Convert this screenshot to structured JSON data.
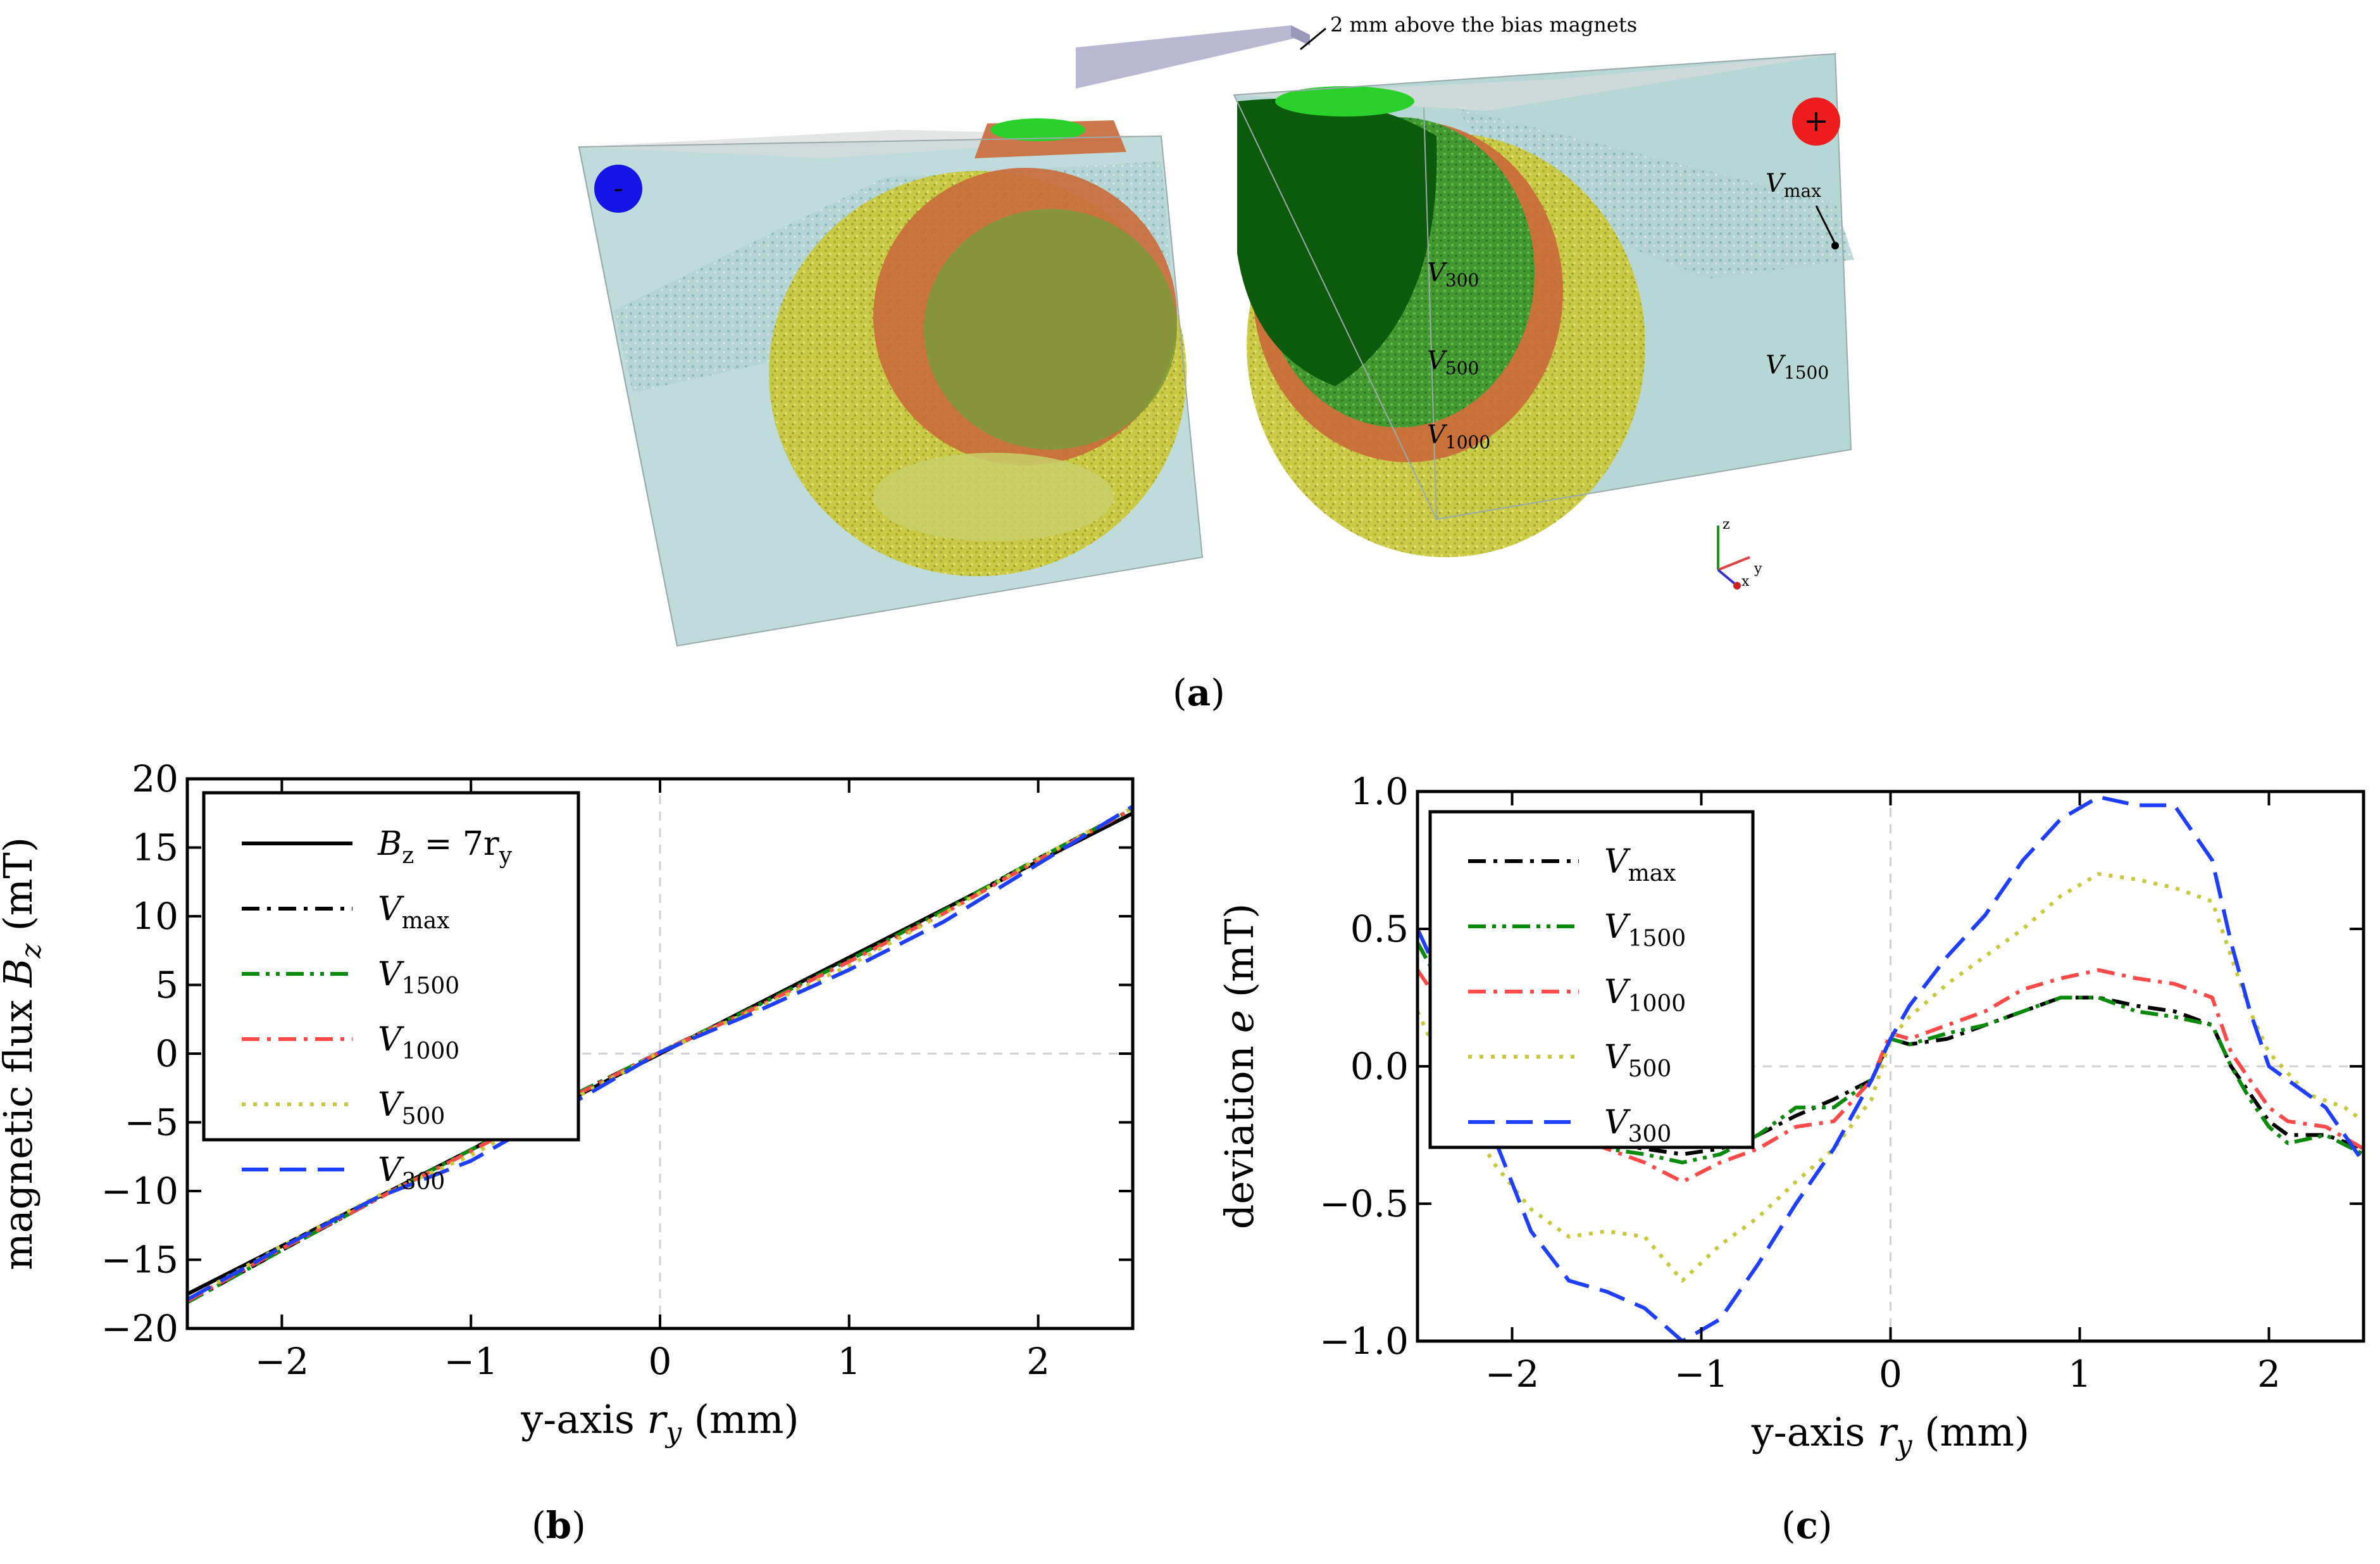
{
  "panel_labels": {
    "a": "a",
    "b": "b",
    "c": "c"
  },
  "figure_a": {
    "probe_annotation": "2 mm above the bias magnets",
    "negative_symbol": "-",
    "positive_symbol": "+",
    "volume_labels": [
      {
        "base": "V",
        "sub": "max"
      },
      {
        "base": "V",
        "sub": "300"
      },
      {
        "base": "V",
        "sub": "500"
      },
      {
        "base": "V",
        "sub": "1500"
      },
      {
        "base": "V",
        "sub": "1000"
      }
    ],
    "axes_triad": {
      "z": "z",
      "y": "y",
      "x": "x"
    },
    "colors": {
      "negative": "#1414e6",
      "positive": "#ee1c1c",
      "box": "#b8d8d8",
      "outer_shell": "#c8c83c",
      "mid_shell": "#c8603c",
      "inner_shell": "#1f8f1f"
    }
  },
  "chart_data": [
    {
      "type": "line",
      "xlabel": "y-axis r_y (mm)",
      "ylabel": "magnetic flux B_z (mT)",
      "xlim": [
        -2.5,
        2.5
      ],
      "ylim": [
        -20,
        20
      ],
      "xticks": [
        -2,
        -1,
        0,
        1,
        2
      ],
      "yticks": [
        -20,
        -15,
        -10,
        -5,
        0,
        5,
        10,
        15,
        20
      ],
      "xtick_labels": [
        "−2",
        "−1",
        "0",
        "1",
        "2"
      ],
      "ytick_labels": [
        "−20",
        "−15",
        "−10",
        "−5",
        "0",
        "5",
        "10",
        "15",
        "20"
      ],
      "legend_location": "upper-left",
      "series": [
        {
          "name": "B_z = 7r_y",
          "label": "B",
          "label_sub": "z",
          "label_suffix": " = 7r",
          "label_suffix_sub": "y",
          "color": "#000000",
          "dash": "solid",
          "x": [
            -2.5,
            2.5
          ],
          "y": [
            -17.5,
            17.5
          ]
        },
        {
          "name": "V_max",
          "label": "V",
          "label_sub": "max",
          "color": "#000000",
          "dash": "dashdot",
          "x": [
            -2.5,
            -2,
            -1.5,
            -1,
            -0.5,
            0,
            0.5,
            1,
            1.5,
            2,
            2.5
          ],
          "y": [
            -18.1,
            -14.3,
            -10.6,
            -7.0,
            -3.3,
            0.1,
            3.4,
            6.8,
            10.4,
            14.2,
            17.8
          ]
        },
        {
          "name": "V_1500",
          "label": "V",
          "label_sub": "1500",
          "color": "#0a8a0a",
          "dash": "dashdotdot",
          "x": [
            -2.5,
            -2,
            -1.5,
            -1,
            -0.5,
            0,
            0.5,
            1,
            1.5,
            2,
            2.5
          ],
          "y": [
            -18.1,
            -14.3,
            -10.6,
            -7.0,
            -3.3,
            0.1,
            3.4,
            6.8,
            10.4,
            14.2,
            17.8
          ]
        },
        {
          "name": "V_1000",
          "label": "V",
          "label_sub": "1000",
          "color": "#ff4a4a",
          "dash": "dashdot",
          "x": [
            -2.5,
            -2,
            -1.5,
            -1,
            -0.5,
            0,
            0.5,
            1,
            1.5,
            2,
            2.5
          ],
          "y": [
            -18.0,
            -14.2,
            -10.6,
            -7.1,
            -3.4,
            0.1,
            3.3,
            6.7,
            10.2,
            14.1,
            17.8
          ]
        },
        {
          "name": "V_500",
          "label": "V",
          "label_sub": "500",
          "color": "#c8c83c",
          "dash": "dotted",
          "x": [
            -2.5,
            -2,
            -1.5,
            -1,
            -0.5,
            0,
            0.5,
            1,
            1.5,
            2,
            2.5
          ],
          "y": [
            -17.9,
            -14.0,
            -10.4,
            -7.4,
            -3.6,
            0.1,
            3.2,
            6.4,
            10.2,
            14.2,
            17.9
          ]
        },
        {
          "name": "V_300",
          "label": "V",
          "label_sub": "300",
          "color": "#1f3fff",
          "dash": "dashed",
          "x": [
            -2.5,
            -2,
            -1.5,
            -1,
            -0.5,
            0,
            0.5,
            1,
            1.5,
            2,
            2.5
          ],
          "y": [
            -17.9,
            -14.1,
            -10.5,
            -7.8,
            -3.9,
            0.1,
            3.0,
            6.1,
            9.6,
            13.8,
            18.0
          ]
        }
      ]
    },
    {
      "type": "line",
      "xlabel": "y-axis r_y (mm)",
      "ylabel": "deviation e (mT)",
      "xlim": [
        -2.5,
        2.5
      ],
      "ylim": [
        -1.0,
        1.0
      ],
      "xticks": [
        -2,
        -1,
        0,
        1,
        2
      ],
      "yticks": [
        -1.0,
        -0.5,
        0.0,
        0.5,
        1.0
      ],
      "xtick_labels": [
        "−2",
        "−1",
        "0",
        "1",
        "2"
      ],
      "ytick_labels": [
        "−1.0",
        "−0.5",
        "0.0",
        "0.5",
        "1.0"
      ],
      "legend_location": "upper-left",
      "series": [
        {
          "name": "V_max",
          "label": "V",
          "label_sub": "max",
          "color": "#000000",
          "dash": "dashdot",
          "x": [
            -2.5,
            -2.3,
            -2.1,
            -1.9,
            -1.7,
            -1.5,
            -1.3,
            -1.1,
            -0.9,
            -0.7,
            -0.5,
            -0.3,
            -0.1,
            0.0,
            0.1,
            0.3,
            0.5,
            0.7,
            0.9,
            1.1,
            1.3,
            1.5,
            1.7,
            1.8,
            1.9,
            2.0,
            2.1,
            2.3,
            2.5
          ],
          "y": [
            0.45,
            0.2,
            -0.05,
            -0.15,
            -0.2,
            -0.28,
            -0.3,
            -0.32,
            -0.3,
            -0.25,
            -0.18,
            -0.12,
            -0.05,
            0.1,
            0.08,
            0.1,
            0.15,
            0.2,
            0.25,
            0.25,
            0.22,
            0.2,
            0.15,
            0.0,
            -0.1,
            -0.2,
            -0.25,
            -0.25,
            -0.3
          ]
        },
        {
          "name": "V_1500",
          "label": "V",
          "label_sub": "1500",
          "color": "#0a8a0a",
          "dash": "dashdotdot",
          "x": [
            -2.5,
            -2.3,
            -2.1,
            -1.9,
            -1.7,
            -1.5,
            -1.3,
            -1.1,
            -0.9,
            -0.7,
            -0.5,
            -0.3,
            -0.1,
            0.0,
            0.1,
            0.3,
            0.5,
            0.7,
            0.9,
            1.1,
            1.3,
            1.5,
            1.7,
            1.8,
            1.9,
            2.0,
            2.1,
            2.3,
            2.5
          ],
          "y": [
            0.45,
            0.2,
            -0.05,
            -0.15,
            -0.2,
            -0.3,
            -0.32,
            -0.35,
            -0.32,
            -0.25,
            -0.15,
            -0.15,
            -0.05,
            0.1,
            0.08,
            0.12,
            0.15,
            0.2,
            0.25,
            0.25,
            0.2,
            0.18,
            0.15,
            0.0,
            -0.12,
            -0.22,
            -0.28,
            -0.25,
            -0.32
          ]
        },
        {
          "name": "V_1000",
          "label": "V",
          "label_sub": "1000",
          "color": "#ff4a4a",
          "dash": "dashdot",
          "x": [
            -2.5,
            -2.3,
            -2.1,
            -1.9,
            -1.7,
            -1.5,
            -1.3,
            -1.1,
            -0.9,
            -0.7,
            -0.5,
            -0.3,
            -0.1,
            0.0,
            0.1,
            0.3,
            0.5,
            0.7,
            0.9,
            1.1,
            1.3,
            1.5,
            1.7,
            1.8,
            1.9,
            2.0,
            2.1,
            2.3,
            2.5
          ],
          "y": [
            0.35,
            0.15,
            -0.05,
            -0.2,
            -0.25,
            -0.3,
            -0.35,
            -0.42,
            -0.35,
            -0.3,
            -0.22,
            -0.2,
            -0.05,
            0.12,
            0.1,
            0.15,
            0.2,
            0.28,
            0.32,
            0.35,
            0.32,
            0.3,
            0.25,
            0.05,
            -0.05,
            -0.15,
            -0.2,
            -0.22,
            -0.3
          ]
        },
        {
          "name": "V_500",
          "label": "V",
          "label_sub": "500",
          "color": "#c8c83c",
          "dash": "dotted",
          "x": [
            -2.5,
            -2.3,
            -2.1,
            -1.9,
            -1.7,
            -1.5,
            -1.3,
            -1.1,
            -0.9,
            -0.7,
            -0.5,
            -0.3,
            -0.1,
            0.0,
            0.1,
            0.3,
            0.5,
            0.7,
            0.9,
            1.1,
            1.3,
            1.5,
            1.7,
            1.8,
            1.9,
            2.0,
            2.2,
            2.4,
            2.5
          ],
          "y": [
            0.2,
            -0.1,
            -0.35,
            -0.52,
            -0.62,
            -0.6,
            -0.62,
            -0.78,
            -0.65,
            -0.55,
            -0.42,
            -0.3,
            -0.12,
            0.1,
            0.18,
            0.3,
            0.4,
            0.5,
            0.62,
            0.7,
            0.68,
            0.65,
            0.6,
            0.4,
            0.2,
            0.05,
            -0.1,
            -0.15,
            -0.2
          ]
        },
        {
          "name": "V_300",
          "label": "V",
          "label_sub": "300",
          "color": "#1f3fff",
          "dash": "dashed",
          "x": [
            -2.5,
            -2.3,
            -2.1,
            -1.9,
            -1.7,
            -1.5,
            -1.3,
            -1.1,
            -0.9,
            -0.7,
            -0.5,
            -0.3,
            -0.1,
            0.0,
            0.1,
            0.3,
            0.5,
            0.7,
            0.9,
            1.1,
            1.3,
            1.5,
            1.7,
            1.8,
            1.9,
            2.0,
            2.1,
            2.3,
            2.5
          ],
          "y": [
            0.5,
            0.2,
            -0.25,
            -0.6,
            -0.78,
            -0.82,
            -0.88,
            -1.0,
            -0.92,
            -0.72,
            -0.5,
            -0.3,
            -0.05,
            0.1,
            0.22,
            0.4,
            0.55,
            0.75,
            0.9,
            0.98,
            0.95,
            0.95,
            0.75,
            0.45,
            0.2,
            0.0,
            -0.05,
            -0.15,
            -0.35
          ]
        }
      ]
    }
  ]
}
